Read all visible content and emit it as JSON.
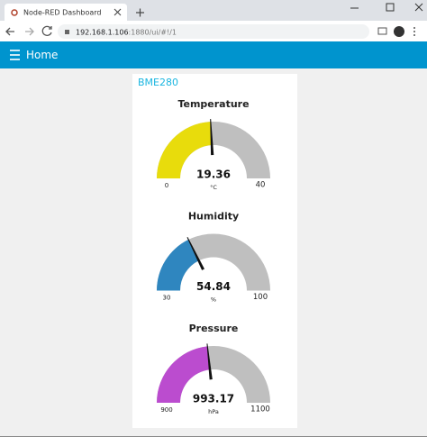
{
  "browser": {
    "tab_title": "Node-RED Dashboard",
    "url_host": "192.168.1.106",
    "url_rest": ":1880/ui/#!/1"
  },
  "toolbar": {
    "title": "Home"
  },
  "group": {
    "title": "BME280"
  },
  "gauges": [
    {
      "title": "Temperature",
      "value": 19.36,
      "units": "°C",
      "min": 0,
      "max": 40,
      "color": "#e8dc0c"
    },
    {
      "title": "Humidity",
      "value": 54.84,
      "units": "%",
      "min": 30,
      "max": 100,
      "color": "#2f86bf"
    },
    {
      "title": "Pressure",
      "value": 993.17,
      "units": "hPa",
      "min": 900,
      "max": 1100,
      "color": "#bb4ccf"
    }
  ]
}
